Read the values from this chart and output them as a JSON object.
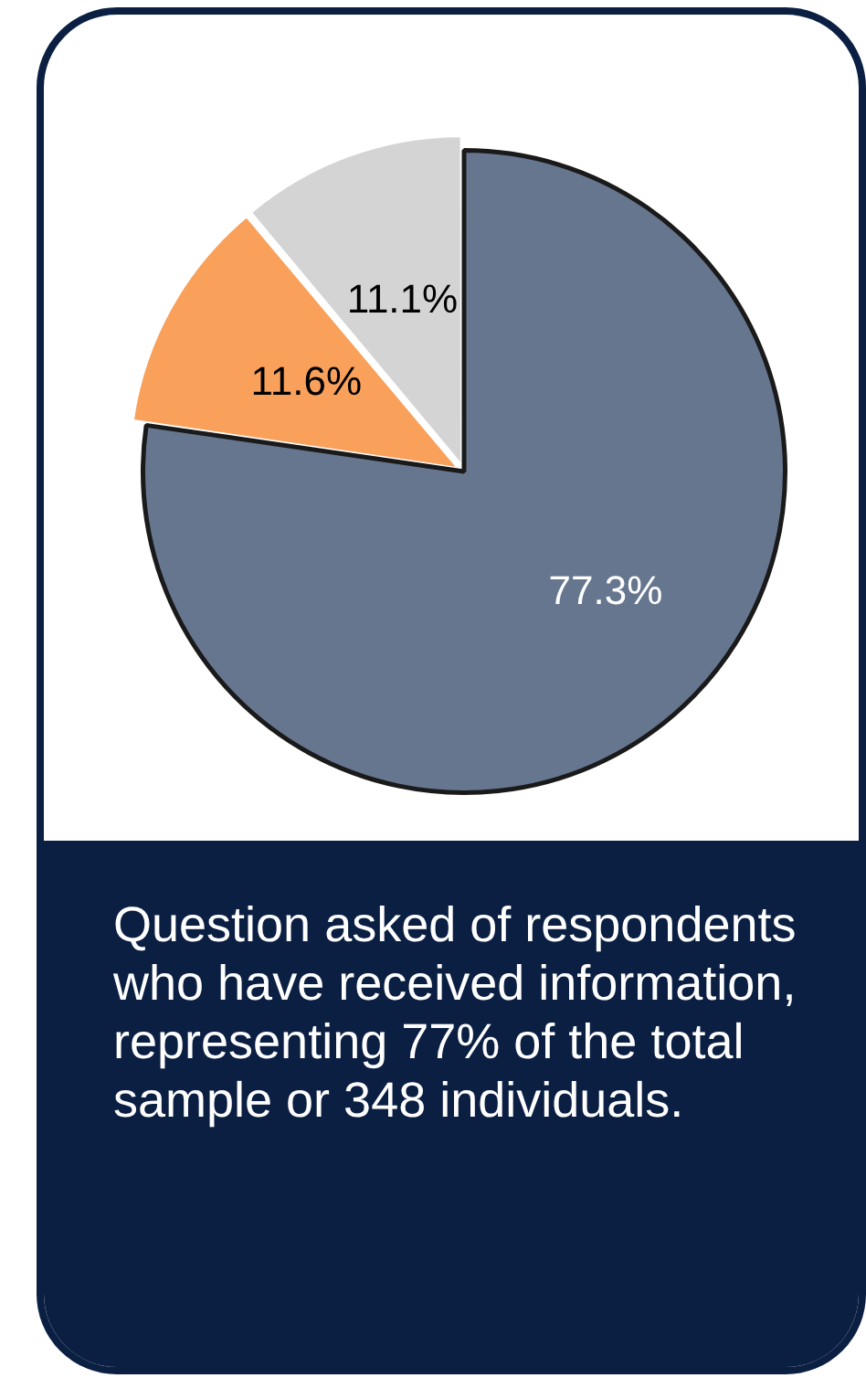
{
  "chart_data": {
    "type": "pie",
    "categories": [
      null,
      null,
      null
    ],
    "values": [
      77.3,
      11.6,
      11.1
    ],
    "colors": [
      "#66768f",
      "#f9a05b",
      "#d4d4d4"
    ],
    "value_labels": [
      "77.3%",
      "11.6%",
      "11.1%"
    ],
    "legend": false,
    "annotations": [
      "Question asked of respondents who have received information, representing 77% of the total sample or 348 individuals."
    ]
  }
}
